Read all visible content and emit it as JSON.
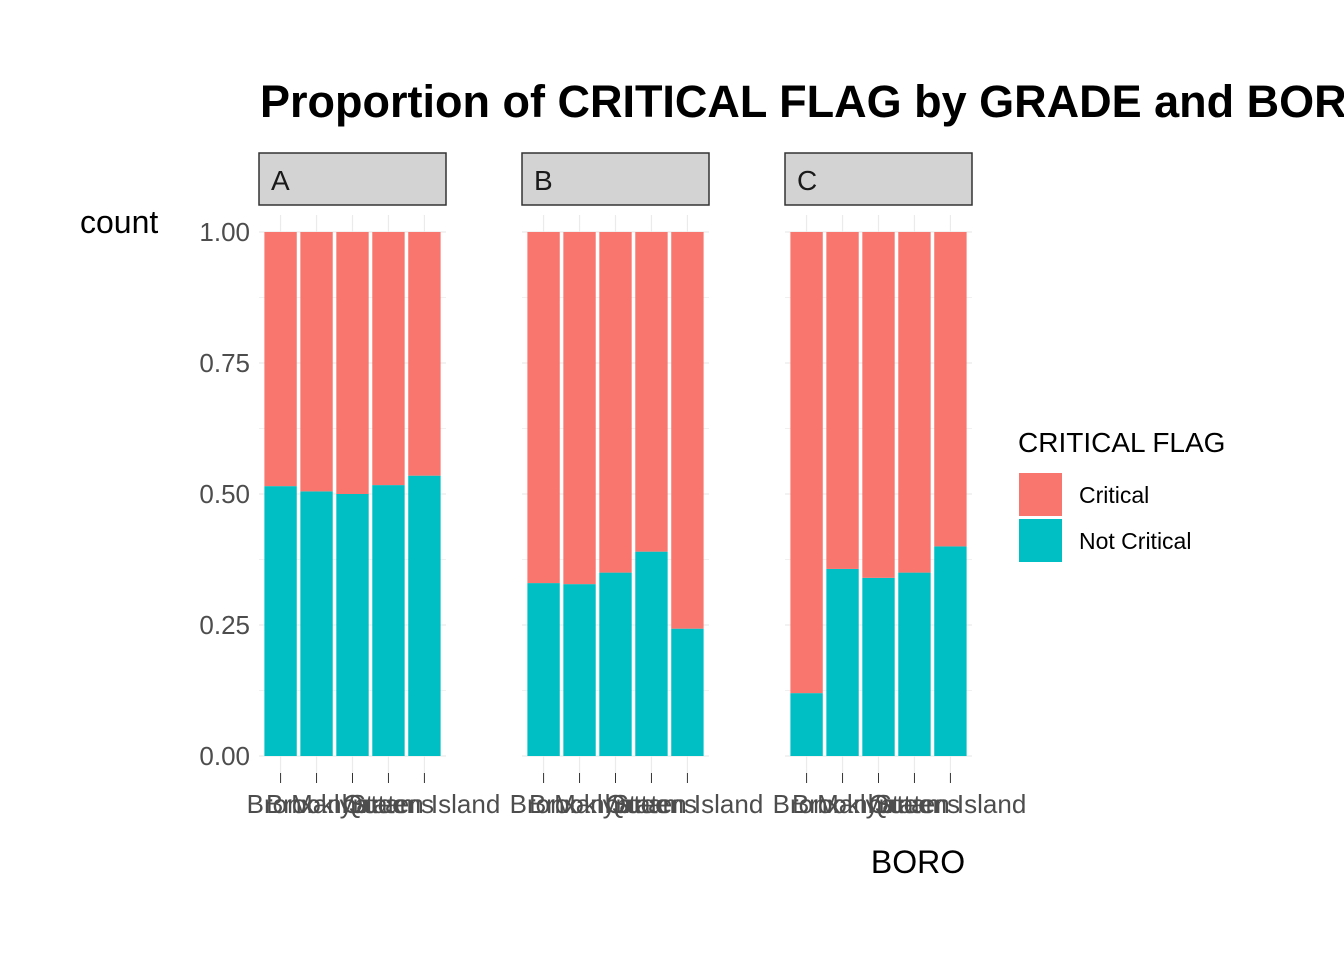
{
  "chart_data": {
    "type": "bar",
    "stacked": true,
    "position": "fill",
    "title": "Proportion of CRITICAL FLAG by GRADE and BORO",
    "xlabel": "BORO",
    "ylabel": "count",
    "ylim": [
      0,
      1
    ],
    "yticks": [
      "0.00",
      "0.25",
      "0.50",
      "0.75",
      "1.00"
    ],
    "categories": [
      "Bronx",
      "Brooklyn",
      "Manhattan",
      "Queens",
      "Staten Island"
    ],
    "legend": {
      "title": "CRITICAL FLAG",
      "placement": "right",
      "entries": [
        "Critical",
        "Not Critical"
      ]
    },
    "colors": {
      "Critical": "#F8766D",
      "Not Critical": "#00BFC4",
      "strip_fill": "#D3D3D3"
    },
    "facets": [
      {
        "label": "A",
        "series": [
          {
            "name": "Not Critical",
            "values": [
              0.515,
              0.505,
              0.5,
              0.517,
              0.535
            ]
          },
          {
            "name": "Critical",
            "values": [
              0.485,
              0.495,
              0.5,
              0.483,
              0.465
            ]
          }
        ]
      },
      {
        "label": "B",
        "series": [
          {
            "name": "Not Critical",
            "values": [
              0.33,
              0.328,
              0.35,
              0.39,
              0.243
            ]
          },
          {
            "name": "Critical",
            "values": [
              0.67,
              0.672,
              0.65,
              0.61,
              0.757
            ]
          }
        ]
      },
      {
        "label": "C",
        "series": [
          {
            "name": "Not Critical",
            "values": [
              0.12,
              0.357,
              0.34,
              0.35,
              0.4
            ]
          },
          {
            "name": "Critical",
            "values": [
              0.88,
              0.643,
              0.66,
              0.65,
              0.6
            ]
          }
        ]
      }
    ]
  }
}
